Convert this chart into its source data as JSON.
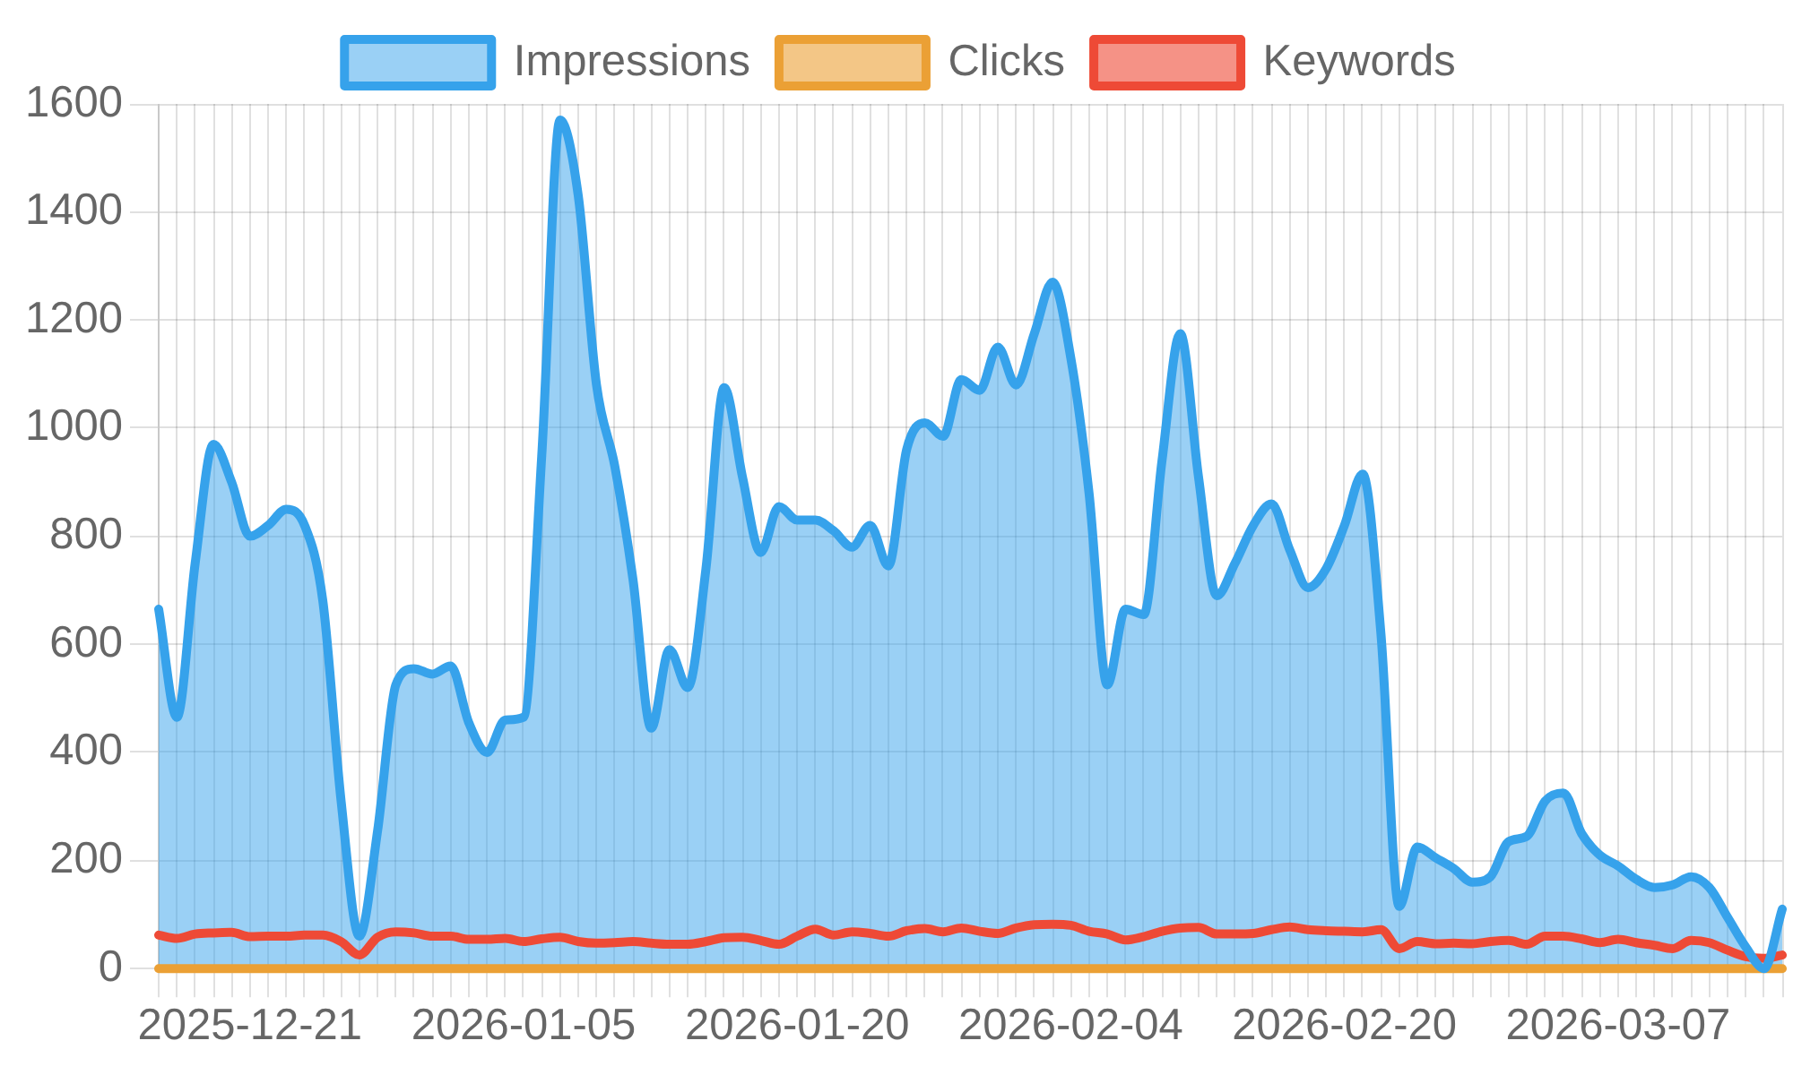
{
  "chart_data": {
    "type": "line",
    "categories": [
      null,
      null,
      null,
      null,
      null,
      "2025-12-21",
      null,
      null,
      null,
      null,
      null,
      null,
      null,
      null,
      null,
      null,
      null,
      null,
      null,
      null,
      "2026-01-05",
      null,
      null,
      null,
      null,
      null,
      null,
      null,
      null,
      null,
      null,
      null,
      null,
      null,
      null,
      "2026-01-20",
      null,
      null,
      null,
      null,
      null,
      null,
      null,
      null,
      null,
      null,
      null,
      null,
      null,
      null,
      "2026-02-04",
      null,
      null,
      null,
      null,
      null,
      null,
      null,
      null,
      null,
      null,
      null,
      null,
      null,
      null,
      "2026-02-20",
      null,
      null,
      null,
      null,
      null,
      null,
      null,
      null,
      null,
      null,
      null,
      null,
      null,
      null,
      "2026-03-07",
      null,
      null,
      null,
      null,
      null,
      null,
      null,
      null,
      null
    ],
    "series": [
      {
        "name": "Impressions",
        "type": "area",
        "color": "#36a2eb",
        "values": [
          665,
          465,
          750,
          970,
          900,
          800,
          820,
          850,
          820,
          680,
          310,
          60,
          255,
          525,
          555,
          545,
          560,
          455,
          400,
          460,
          465,
          950,
          1570,
          1430,
          1080,
          930,
          720,
          445,
          590,
          520,
          740,
          1075,
          910,
          770,
          855,
          830,
          830,
          810,
          780,
          820,
          745,
          960,
          1010,
          985,
          1090,
          1070,
          1150,
          1080,
          1175,
          1270,
          1130,
          880,
          525,
          665,
          655,
          940,
          1175,
          910,
          690,
          750,
          820,
          860,
          775,
          705,
          740,
          820,
          915,
          620,
          115,
          225,
          205,
          185,
          160,
          170,
          235,
          245,
          310,
          325,
          250,
          210,
          190,
          165,
          150,
          155,
          170,
          150,
          95,
          40,
          0,
          110
        ]
      },
      {
        "name": "Clicks",
        "type": "line",
        "color": "#eba035",
        "values": [
          0,
          0,
          0,
          0,
          0,
          0,
          0,
          0,
          0,
          0,
          0,
          0,
          0,
          0,
          0,
          0,
          0,
          0,
          0,
          0,
          0,
          0,
          0,
          0,
          0,
          0,
          0,
          0,
          0,
          0,
          0,
          0,
          0,
          0,
          0,
          0,
          0,
          0,
          0,
          0,
          0,
          0,
          0,
          0,
          0,
          0,
          0,
          0,
          0,
          0,
          0,
          0,
          0,
          0,
          0,
          0,
          0,
          0,
          0,
          0,
          0,
          0,
          0,
          0,
          0,
          0,
          0,
          0,
          0,
          0,
          0,
          0,
          0,
          0,
          0,
          0,
          0,
          0,
          0,
          0,
          0,
          0,
          0,
          0,
          0,
          0,
          0,
          0,
          0,
          0
        ]
      },
      {
        "name": "Keywords",
        "type": "line",
        "color": "#ee4a36",
        "values": [
          62,
          56,
          64,
          66,
          67,
          59,
          60,
          60,
          62,
          62,
          50,
          25,
          58,
          68,
          66,
          60,
          60,
          54,
          54,
          56,
          50,
          55,
          58,
          50,
          47,
          48,
          50,
          47,
          45,
          45,
          50,
          57,
          58,
          52,
          45,
          60,
          73,
          62,
          68,
          65,
          60,
          70,
          74,
          68,
          75,
          69,
          65,
          75,
          81,
          82,
          80,
          69,
          64,
          53,
          59,
          69,
          75,
          76,
          64,
          64,
          65,
          72,
          77,
          72,
          70,
          69,
          68,
          72,
          37,
          50,
          46,
          47,
          46,
          50,
          52,
          45,
          60,
          60,
          55,
          48,
          54,
          48,
          43,
          37,
          52,
          48,
          34,
          22,
          19,
          25
        ]
      }
    ],
    "ylim": [
      0,
      1600
    ],
    "yticks": [
      0,
      200,
      400,
      600,
      800,
      1000,
      1200,
      1400,
      1600
    ],
    "grid": true,
    "legend": "top",
    "marker": "none"
  }
}
